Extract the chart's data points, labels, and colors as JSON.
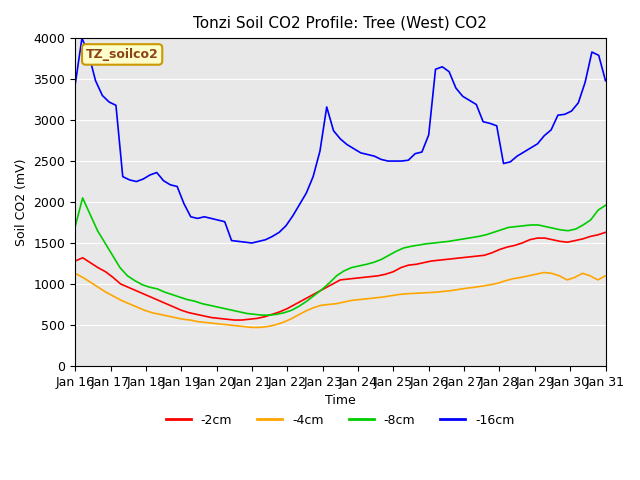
{
  "title": "Tonzi Soil CO2 Profile: Tree (West) CO2",
  "xlabel": "Time",
  "ylabel": "Soil CO2 (mV)",
  "ylim": [
    0,
    4000
  ],
  "bg_color": "#e8e8e8",
  "label_box_text": "TZ_soilco2",
  "label_box_bg": "#ffffcc",
  "label_box_edge": "#cc9900",
  "xtick_labels": [
    "Jan 16",
    "Jan 17",
    "Jan 18",
    "Jan 19",
    "Jan 20",
    "Jan 21",
    "Jan 22",
    "Jan 23",
    "Jan 24",
    "Jan 25",
    "Jan 26",
    "Jan 27",
    "Jan 28",
    "Jan 29",
    "Jan 30",
    "Jan 31"
  ],
  "series": {
    "-2cm": {
      "color": "#ff0000",
      "y": [
        1280,
        1320,
        1260,
        1200,
        1150,
        1080,
        1000,
        960,
        920,
        880,
        840,
        800,
        760,
        720,
        680,
        650,
        630,
        610,
        590,
        580,
        570,
        560,
        560,
        570,
        580,
        600,
        630,
        660,
        700,
        750,
        800,
        850,
        900,
        950,
        1000,
        1050,
        1060,
        1070,
        1080,
        1090,
        1100,
        1120,
        1150,
        1200,
        1230,
        1240,
        1260,
        1280,
        1290,
        1300,
        1310,
        1320,
        1330,
        1340,
        1350,
        1380,
        1420,
        1450,
        1470,
        1500,
        1540,
        1560,
        1560,
        1540,
        1520,
        1510,
        1530,
        1550,
        1580,
        1600,
        1630
      ]
    },
    "-4cm": {
      "color": "#ffa500",
      "y": [
        1130,
        1080,
        1020,
        960,
        900,
        850,
        800,
        760,
        720,
        680,
        650,
        630,
        610,
        590,
        570,
        560,
        540,
        530,
        520,
        510,
        500,
        490,
        480,
        470,
        470,
        480,
        500,
        530,
        570,
        620,
        670,
        710,
        740,
        750,
        760,
        780,
        800,
        810,
        820,
        830,
        840,
        855,
        870,
        880,
        885,
        890,
        895,
        900,
        910,
        920,
        935,
        950,
        960,
        975,
        990,
        1010,
        1040,
        1065,
        1080,
        1100,
        1120,
        1140,
        1130,
        1100,
        1050,
        1080,
        1130,
        1100,
        1050,
        1100
      ]
    },
    "-8cm": {
      "color": "#00cc00",
      "y": [
        1700,
        2050,
        1850,
        1650,
        1500,
        1350,
        1200,
        1100,
        1040,
        990,
        960,
        940,
        900,
        870,
        840,
        810,
        790,
        760,
        740,
        720,
        700,
        680,
        660,
        640,
        630,
        620,
        620,
        630,
        650,
        680,
        730,
        790,
        860,
        930,
        1010,
        1100,
        1160,
        1200,
        1220,
        1240,
        1265,
        1300,
        1350,
        1400,
        1440,
        1460,
        1475,
        1490,
        1500,
        1510,
        1520,
        1535,
        1550,
        1565,
        1580,
        1600,
        1630,
        1660,
        1690,
        1700,
        1710,
        1720,
        1720,
        1700,
        1680,
        1660,
        1650,
        1670,
        1720,
        1780,
        1900,
        1960
      ]
    },
    "-16cm": {
      "color": "#0000ff",
      "y": [
        3430,
        4000,
        3800,
        3480,
        3300,
        3220,
        3180,
        2310,
        2270,
        2250,
        2280,
        2330,
        2360,
        2260,
        2210,
        2190,
        1980,
        1820,
        1800,
        1820,
        1800,
        1780,
        1760,
        1530,
        1520,
        1510,
        1500,
        1520,
        1540,
        1580,
        1630,
        1710,
        1830,
        1970,
        2110,
        2310,
        2620,
        3160,
        2870,
        2770,
        2700,
        2650,
        2600,
        2580,
        2560,
        2520,
        2500,
        2500,
        2500,
        2510,
        2590,
        2610,
        2820,
        3620,
        3650,
        3590,
        3390,
        3290,
        3240,
        3190,
        2980,
        2960,
        2930,
        2470,
        2490,
        2560,
        2610,
        2660,
        2710,
        2810,
        2880,
        3060,
        3070,
        3110,
        3210,
        3460,
        3830,
        3790,
        3480
      ]
    }
  }
}
